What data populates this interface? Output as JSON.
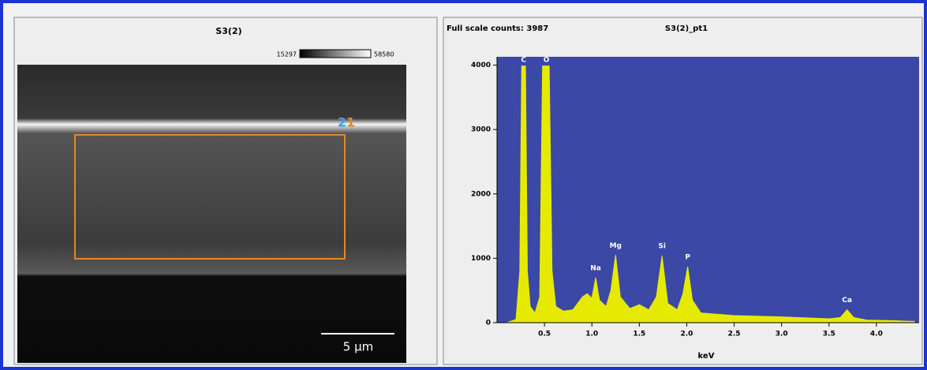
{
  "image_panel": {
    "title": "S3(2)",
    "colorbar_min": "15297",
    "colorbar_max": "58580",
    "scale_bar": "5 µm",
    "markers": [
      "2",
      "1"
    ]
  },
  "chart_data": {
    "type": "area",
    "title": "S3(2)_pt1",
    "subtitle": "Full scale counts: 3987",
    "x_label": "keV",
    "color": "#e6ea00",
    "background": "#3b48a6",
    "x": [
      0.1,
      0.2,
      0.24,
      0.26,
      0.3,
      0.32,
      0.35,
      0.4,
      0.45,
      0.48,
      0.55,
      0.58,
      0.62,
      0.7,
      0.8,
      0.9,
      0.95,
      1.0,
      1.04,
      1.08,
      1.15,
      1.2,
      1.25,
      1.3,
      1.4,
      1.5,
      1.6,
      1.68,
      1.74,
      1.8,
      1.9,
      1.96,
      2.01,
      2.06,
      2.15,
      2.5,
      3.0,
      3.5,
      3.62,
      3.69,
      3.76,
      3.9,
      4.2,
      4.4
    ],
    "values": [
      0,
      50,
      800,
      3987,
      3987,
      800,
      250,
      150,
      400,
      3987,
      3987,
      800,
      250,
      180,
      200,
      400,
      450,
      380,
      700,
      350,
      250,
      500,
      1050,
      400,
      220,
      280,
      200,
      400,
      1040,
      300,
      200,
      450,
      870,
      350,
      150,
      110,
      90,
      60,
      80,
      200,
      80,
      40,
      30,
      20
    ],
    "annotations": [
      {
        "text": "C",
        "x": 0.28
      },
      {
        "text": "O",
        "x": 0.52
      },
      {
        "text": "Na",
        "x": 1.04
      },
      {
        "text": "Mg",
        "x": 1.25
      },
      {
        "text": "Si",
        "x": 1.74
      },
      {
        "text": "P",
        "x": 2.01
      },
      {
        "text": "Ca",
        "x": 3.69
      }
    ],
    "xlim": [
      0,
      4.45
    ],
    "ylim": [
      0,
      4130
    ],
    "xticks": [
      0.5,
      {
        "value": 1,
        "label": "1.0"
      },
      1.5,
      {
        "value": 2,
        "label": "2.0"
      },
      2.5,
      {
        "value": 3,
        "label": "3.0"
      },
      3.5,
      {
        "value": 4,
        "label": "4.0"
      }
    ],
    "yticks": [
      0,
      1000,
      2000,
      3000,
      4000
    ]
  }
}
